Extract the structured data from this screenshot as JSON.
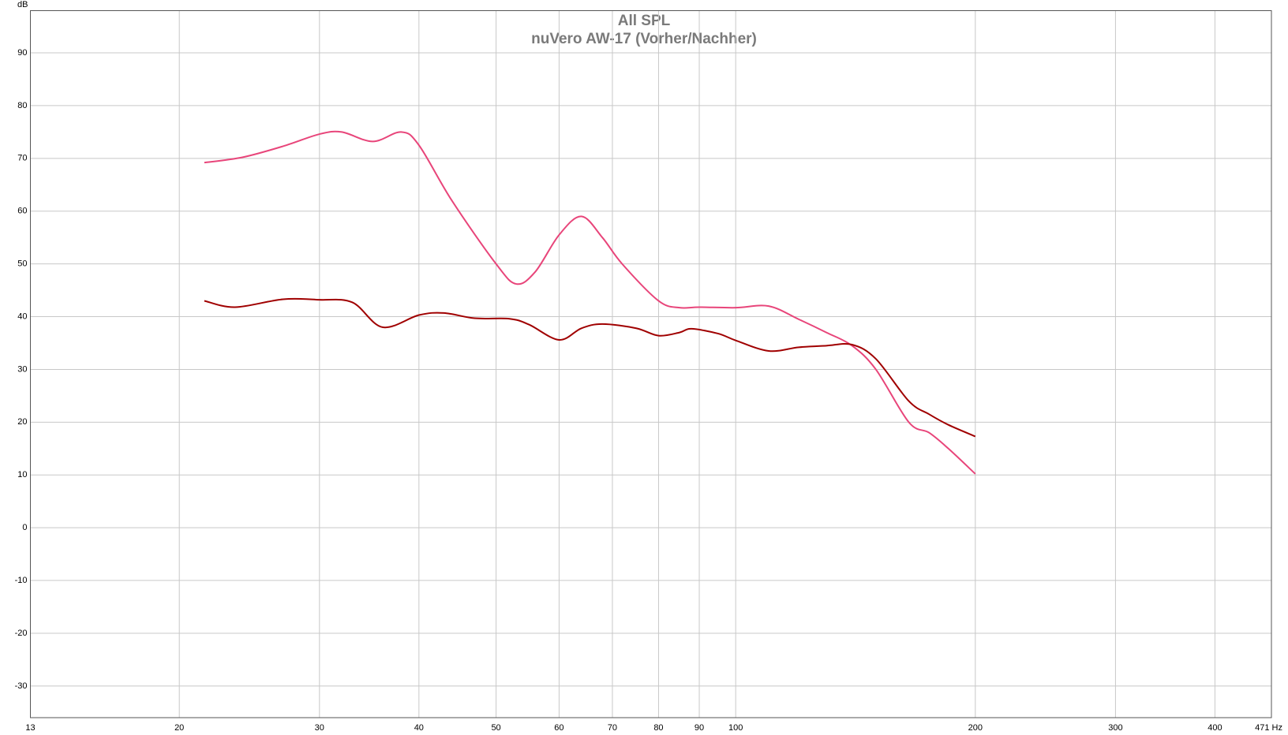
{
  "chart_data": {
    "type": "line",
    "title": "All SPL",
    "subtitle": "nuVero AW-17 (Vorher/Nachher)",
    "y_label": "dB",
    "log_x": true,
    "grid": true,
    "xlim": [
      13,
      471
    ],
    "xticks": [
      13,
      20,
      30,
      40,
      50,
      60,
      70,
      80,
      90,
      100,
      200,
      300,
      400,
      {
        "value": 471,
        "label": "471 Hz"
      }
    ],
    "ylim": [
      -36,
      98
    ],
    "yticks": [
      -30,
      -20,
      -10,
      0,
      10,
      20,
      30,
      40,
      50,
      60,
      70,
      80,
      90
    ],
    "series": [
      {
        "color": "#e8457a",
        "x": [
          21.5,
          24,
          27,
          30,
          32,
          35,
          38,
          40,
          44,
          50,
          53,
          56,
          60,
          64,
          68,
          72,
          80,
          85,
          90,
          100,
          110,
          120,
          130,
          140,
          150,
          165,
          175,
          185,
          200
        ],
        "values": [
          69.2,
          70.2,
          72.3,
          74.6,
          75,
          73.2,
          75,
          72.5,
          62,
          50,
          46.2,
          48.5,
          55.5,
          59,
          55,
          50,
          43,
          41.7,
          41.8,
          41.7,
          42,
          39.5,
          37,
          34.5,
          30,
          20,
          18,
          15,
          10.2
        ]
      },
      {
        "color": "#a00000",
        "x": [
          21.5,
          23.5,
          27,
          30,
          33,
          36,
          40,
          43,
          47,
          52,
          55,
          60,
          64,
          68,
          75,
          80,
          85,
          88,
          95,
          100,
          110,
          120,
          130,
          140,
          150,
          165,
          175,
          185,
          200
        ],
        "values": [
          43,
          41.8,
          43.3,
          43.2,
          42.7,
          38,
          40.3,
          40.7,
          39.7,
          39.6,
          38.5,
          35.6,
          37.8,
          38.6,
          37.8,
          36.4,
          37,
          37.7,
          36.8,
          35.5,
          33.5,
          34.2,
          34.5,
          34.7,
          32,
          24,
          21.5,
          19.5,
          17.3
        ]
      }
    ]
  }
}
